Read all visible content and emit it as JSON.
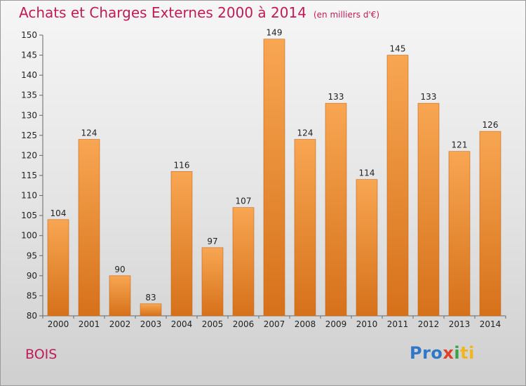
{
  "header": {
    "title": "Achats et Charges Externes 2000 à 2014",
    "unit": "(en milliers d'€)"
  },
  "footer": {
    "commune": "BOIS",
    "logo_parts": [
      "Pro",
      "x",
      "i",
      "ti"
    ]
  },
  "colors": {
    "title": "#c01a58",
    "bar_light": "#f7a24e",
    "bar_dark": "#d8741a"
  },
  "chart_data": {
    "type": "bar",
    "categories": [
      "2000",
      "2001",
      "2002",
      "2003",
      "2004",
      "2005",
      "2006",
      "2007",
      "2008",
      "2009",
      "2010",
      "2011",
      "2012",
      "2013",
      "2014"
    ],
    "values": [
      104,
      124,
      90,
      83,
      116,
      97,
      107,
      149,
      124,
      133,
      114,
      145,
      133,
      121,
      126
    ],
    "ylim": [
      80,
      150
    ],
    "yticks": [
      80,
      85,
      90,
      95,
      100,
      105,
      110,
      115,
      120,
      125,
      130,
      135,
      140,
      145,
      150
    ],
    "grid": false,
    "legend": "none"
  }
}
